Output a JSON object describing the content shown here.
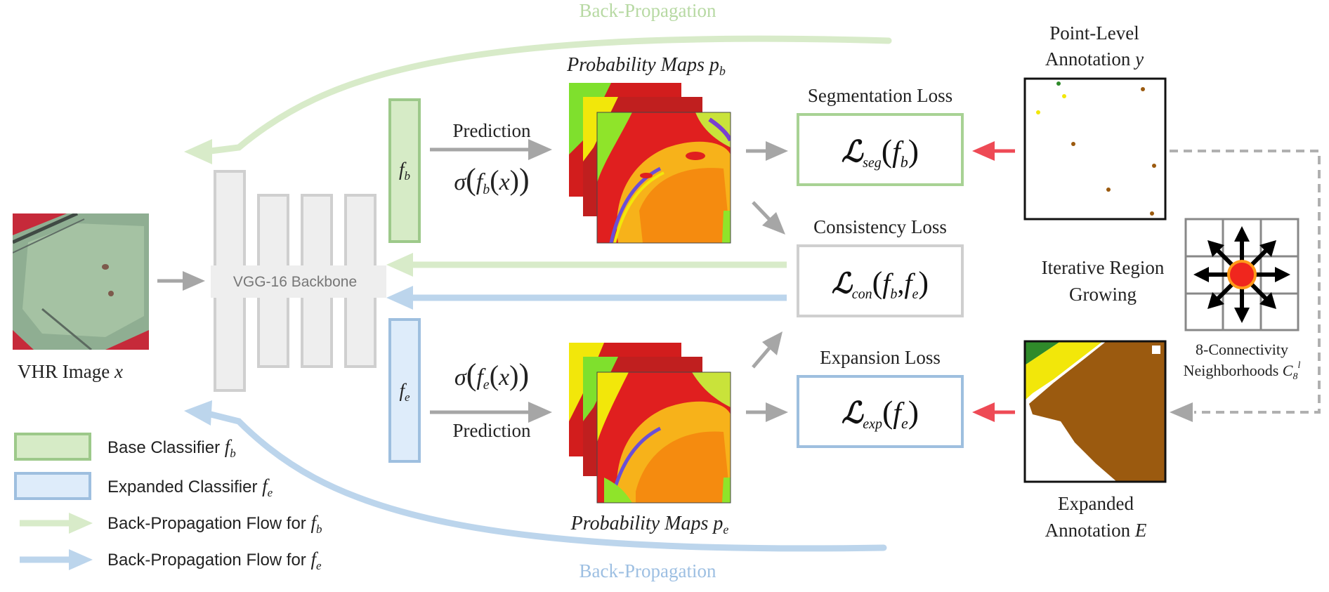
{
  "top_backprop_label": "Back-Propagation",
  "bottom_backprop_label": "Back-Propagation",
  "input": {
    "label": "VHR Image",
    "symbol": "x"
  },
  "backbone": {
    "label": "VGG-16 Backbone"
  },
  "base_classifier": {
    "symbol": "f",
    "sub": "b"
  },
  "expanded_classifier": {
    "symbol": "f",
    "sub": "e"
  },
  "prediction_top": {
    "label": "Prediction",
    "formula_sigma": "σ",
    "formula_f": "f",
    "formula_sub": "b",
    "formula_x": "x"
  },
  "prediction_bottom": {
    "label": "Prediction",
    "formula_sigma": "σ",
    "formula_f": "f",
    "formula_sub": "e",
    "formula_x": "x"
  },
  "prob_maps_top": {
    "label": "Probability Maps",
    "symbol": "p",
    "sub": "b"
  },
  "prob_maps_bottom": {
    "label": "Probability Maps",
    "symbol": "p",
    "sub": "e"
  },
  "losses": {
    "seg": {
      "title": "Segmentation Loss",
      "L": "ℒ",
      "sub": "seg",
      "args": "f",
      "arg_sub": "b"
    },
    "con": {
      "title": "Consistency Loss",
      "L": "ℒ",
      "sub": "con",
      "arg1": "f",
      "arg1_sub": "b",
      "sep": ",",
      "arg2": "f",
      "arg2_sub": "e"
    },
    "exp": {
      "title": "Expansion Loss",
      "L": "ℒ",
      "sub": "exp",
      "args": "f",
      "arg_sub": "e"
    }
  },
  "point_annotation": {
    "line1": "Point-Level",
    "line2": "Annotation",
    "symbol": "y"
  },
  "region_growing": {
    "line1": "Iterative Region",
    "line2": "Growing"
  },
  "neighborhood": {
    "line1": "8-Connectivity",
    "line2": "Neighborhoods",
    "symbol": "C",
    "sub": "8",
    "sup": "l"
  },
  "expanded_annotation": {
    "line1": "Expanded",
    "line2": "Annotation",
    "symbol": "E"
  },
  "legend": [
    {
      "text": "Base Classifier",
      "sym": "f",
      "sub": "b"
    },
    {
      "text": "Expanded Classifier",
      "sym": "f",
      "sub": "e"
    },
    {
      "text": "Back-Propagation Flow for",
      "sym": "f",
      "sub": "b"
    },
    {
      "text": "Back-Propagation Flow for",
      "sym": "f",
      "sub": "e"
    }
  ],
  "colors": {
    "green_fill": "#d6ebc6",
    "green_stroke": "#9dc98a",
    "green_arrow": "#d8ebc9",
    "blue_fill": "#deecfa",
    "blue_stroke": "#9ebfdf",
    "blue_arrow": "#bcd5ec",
    "gray_block": "#eeeeee",
    "gray_stroke": "#cfcfcf",
    "gray_arrow": "#a6a6a6",
    "red_arrow": "#ee4a55",
    "brown": "#9b5a0f"
  }
}
